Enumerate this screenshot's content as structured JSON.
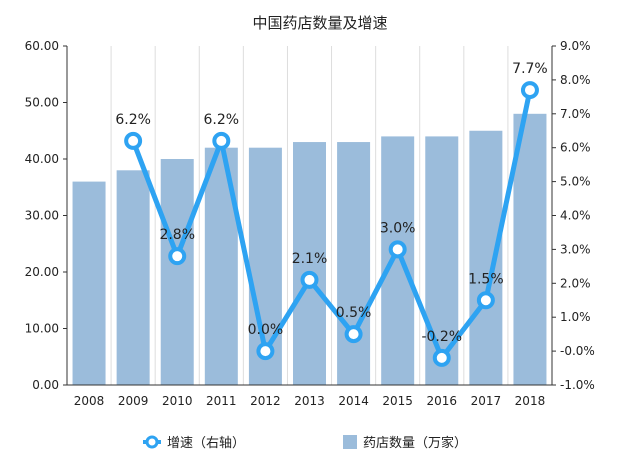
{
  "chart_data": {
    "type": "bar+line",
    "title": "中国药店数量及增速",
    "categories": [
      "2008",
      "2009",
      "2010",
      "2011",
      "2012",
      "2013",
      "2014",
      "2015",
      "2016",
      "2017",
      "2018"
    ],
    "left_axis": {
      "ylim": [
        0,
        60
      ],
      "ticks": [
        "0.00",
        "10.00",
        "20.00",
        "30.00",
        "40.00",
        "50.00",
        "60.00"
      ]
    },
    "right_axis": {
      "ylim": [
        -1.0,
        9.0
      ],
      "unit": "%",
      "ticks": [
        "-1.0%",
        "-0.0%",
        "1.0%",
        "2.0%",
        "3.0%",
        "4.0%",
        "5.0%",
        "6.0%",
        "7.0%",
        "8.0%",
        "9.0%"
      ]
    },
    "series": [
      {
        "name": "药店数量（万家）",
        "type": "bar",
        "axis": "left",
        "color": "#9bbcdb",
        "values": [
          36,
          38,
          40,
          42,
          42,
          43,
          43,
          44,
          44,
          45,
          48
        ]
      },
      {
        "name": "增速（右轴）",
        "type": "line",
        "axis": "right",
        "color": "#2ea3f2",
        "values": [
          null,
          6.2,
          2.8,
          6.2,
          0.0,
          2.1,
          0.5,
          3.0,
          -0.2,
          1.5,
          7.7
        ],
        "labels": [
          null,
          "6.2%",
          "2.8%",
          "6.2%",
          "0.0%",
          "2.1%",
          "0.5%",
          "3.0%",
          "-0.2%",
          "1.5%",
          "7.7%"
        ]
      }
    ],
    "legend": {
      "placement": "bottom",
      "order": [
        "增速（右轴）",
        "药店数量（万家）"
      ]
    },
    "grid": "vertical"
  }
}
